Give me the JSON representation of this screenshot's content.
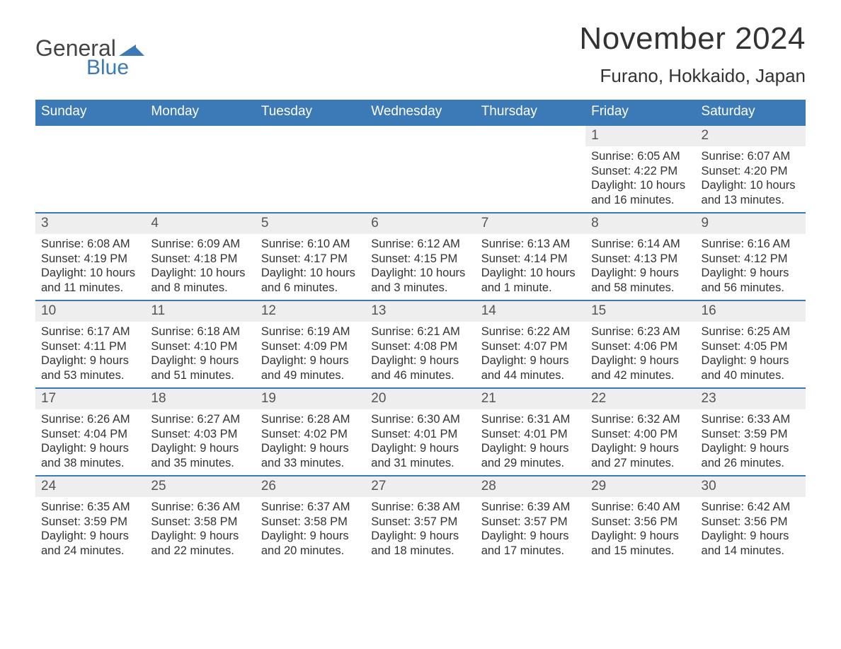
{
  "logo": {
    "word1": "General",
    "word2": "Blue",
    "mark_color": "#3b79b7",
    "text_gray": "#444444"
  },
  "header": {
    "month_title": "November 2024",
    "location": "Furano, Hokkaido, Japan"
  },
  "colors": {
    "header_bg": "#3b79b7",
    "header_text": "#ffffff",
    "row_border": "#3b79b7",
    "daynum_bg": "#eeeeee",
    "daynum_text": "#555555",
    "body_text": "#333333",
    "page_bg": "#ffffff"
  },
  "typography": {
    "month_title_fontsize": 44,
    "location_fontsize": 26,
    "weekday_fontsize": 19,
    "daynum_fontsize": 19,
    "body_fontsize": 16.5
  },
  "calendar": {
    "type": "table",
    "weekdays": [
      "Sunday",
      "Monday",
      "Tuesday",
      "Wednesday",
      "Thursday",
      "Friday",
      "Saturday"
    ],
    "weeks": [
      [
        null,
        null,
        null,
        null,
        null,
        {
          "n": "1",
          "sunrise": "Sunrise: 6:05 AM",
          "sunset": "Sunset: 4:22 PM",
          "dl1": "Daylight: 10 hours",
          "dl2": "and 16 minutes."
        },
        {
          "n": "2",
          "sunrise": "Sunrise: 6:07 AM",
          "sunset": "Sunset: 4:20 PM",
          "dl1": "Daylight: 10 hours",
          "dl2": "and 13 minutes."
        }
      ],
      [
        {
          "n": "3",
          "sunrise": "Sunrise: 6:08 AM",
          "sunset": "Sunset: 4:19 PM",
          "dl1": "Daylight: 10 hours",
          "dl2": "and 11 minutes."
        },
        {
          "n": "4",
          "sunrise": "Sunrise: 6:09 AM",
          "sunset": "Sunset: 4:18 PM",
          "dl1": "Daylight: 10 hours",
          "dl2": "and 8 minutes."
        },
        {
          "n": "5",
          "sunrise": "Sunrise: 6:10 AM",
          "sunset": "Sunset: 4:17 PM",
          "dl1": "Daylight: 10 hours",
          "dl2": "and 6 minutes."
        },
        {
          "n": "6",
          "sunrise": "Sunrise: 6:12 AM",
          "sunset": "Sunset: 4:15 PM",
          "dl1": "Daylight: 10 hours",
          "dl2": "and 3 minutes."
        },
        {
          "n": "7",
          "sunrise": "Sunrise: 6:13 AM",
          "sunset": "Sunset: 4:14 PM",
          "dl1": "Daylight: 10 hours",
          "dl2": "and 1 minute."
        },
        {
          "n": "8",
          "sunrise": "Sunrise: 6:14 AM",
          "sunset": "Sunset: 4:13 PM",
          "dl1": "Daylight: 9 hours",
          "dl2": "and 58 minutes."
        },
        {
          "n": "9",
          "sunrise": "Sunrise: 6:16 AM",
          "sunset": "Sunset: 4:12 PM",
          "dl1": "Daylight: 9 hours",
          "dl2": "and 56 minutes."
        }
      ],
      [
        {
          "n": "10",
          "sunrise": "Sunrise: 6:17 AM",
          "sunset": "Sunset: 4:11 PM",
          "dl1": "Daylight: 9 hours",
          "dl2": "and 53 minutes."
        },
        {
          "n": "11",
          "sunrise": "Sunrise: 6:18 AM",
          "sunset": "Sunset: 4:10 PM",
          "dl1": "Daylight: 9 hours",
          "dl2": "and 51 minutes."
        },
        {
          "n": "12",
          "sunrise": "Sunrise: 6:19 AM",
          "sunset": "Sunset: 4:09 PM",
          "dl1": "Daylight: 9 hours",
          "dl2": "and 49 minutes."
        },
        {
          "n": "13",
          "sunrise": "Sunrise: 6:21 AM",
          "sunset": "Sunset: 4:08 PM",
          "dl1": "Daylight: 9 hours",
          "dl2": "and 46 minutes."
        },
        {
          "n": "14",
          "sunrise": "Sunrise: 6:22 AM",
          "sunset": "Sunset: 4:07 PM",
          "dl1": "Daylight: 9 hours",
          "dl2": "and 44 minutes."
        },
        {
          "n": "15",
          "sunrise": "Sunrise: 6:23 AM",
          "sunset": "Sunset: 4:06 PM",
          "dl1": "Daylight: 9 hours",
          "dl2": "and 42 minutes."
        },
        {
          "n": "16",
          "sunrise": "Sunrise: 6:25 AM",
          "sunset": "Sunset: 4:05 PM",
          "dl1": "Daylight: 9 hours",
          "dl2": "and 40 minutes."
        }
      ],
      [
        {
          "n": "17",
          "sunrise": "Sunrise: 6:26 AM",
          "sunset": "Sunset: 4:04 PM",
          "dl1": "Daylight: 9 hours",
          "dl2": "and 38 minutes."
        },
        {
          "n": "18",
          "sunrise": "Sunrise: 6:27 AM",
          "sunset": "Sunset: 4:03 PM",
          "dl1": "Daylight: 9 hours",
          "dl2": "and 35 minutes."
        },
        {
          "n": "19",
          "sunrise": "Sunrise: 6:28 AM",
          "sunset": "Sunset: 4:02 PM",
          "dl1": "Daylight: 9 hours",
          "dl2": "and 33 minutes."
        },
        {
          "n": "20",
          "sunrise": "Sunrise: 6:30 AM",
          "sunset": "Sunset: 4:01 PM",
          "dl1": "Daylight: 9 hours",
          "dl2": "and 31 minutes."
        },
        {
          "n": "21",
          "sunrise": "Sunrise: 6:31 AM",
          "sunset": "Sunset: 4:01 PM",
          "dl1": "Daylight: 9 hours",
          "dl2": "and 29 minutes."
        },
        {
          "n": "22",
          "sunrise": "Sunrise: 6:32 AM",
          "sunset": "Sunset: 4:00 PM",
          "dl1": "Daylight: 9 hours",
          "dl2": "and 27 minutes."
        },
        {
          "n": "23",
          "sunrise": "Sunrise: 6:33 AM",
          "sunset": "Sunset: 3:59 PM",
          "dl1": "Daylight: 9 hours",
          "dl2": "and 26 minutes."
        }
      ],
      [
        {
          "n": "24",
          "sunrise": "Sunrise: 6:35 AM",
          "sunset": "Sunset: 3:59 PM",
          "dl1": "Daylight: 9 hours",
          "dl2": "and 24 minutes."
        },
        {
          "n": "25",
          "sunrise": "Sunrise: 6:36 AM",
          "sunset": "Sunset: 3:58 PM",
          "dl1": "Daylight: 9 hours",
          "dl2": "and 22 minutes."
        },
        {
          "n": "26",
          "sunrise": "Sunrise: 6:37 AM",
          "sunset": "Sunset: 3:58 PM",
          "dl1": "Daylight: 9 hours",
          "dl2": "and 20 minutes."
        },
        {
          "n": "27",
          "sunrise": "Sunrise: 6:38 AM",
          "sunset": "Sunset: 3:57 PM",
          "dl1": "Daylight: 9 hours",
          "dl2": "and 18 minutes."
        },
        {
          "n": "28",
          "sunrise": "Sunrise: 6:39 AM",
          "sunset": "Sunset: 3:57 PM",
          "dl1": "Daylight: 9 hours",
          "dl2": "and 17 minutes."
        },
        {
          "n": "29",
          "sunrise": "Sunrise: 6:40 AM",
          "sunset": "Sunset: 3:56 PM",
          "dl1": "Daylight: 9 hours",
          "dl2": "and 15 minutes."
        },
        {
          "n": "30",
          "sunrise": "Sunrise: 6:42 AM",
          "sunset": "Sunset: 3:56 PM",
          "dl1": "Daylight: 9 hours",
          "dl2": "and 14 minutes."
        }
      ]
    ]
  }
}
